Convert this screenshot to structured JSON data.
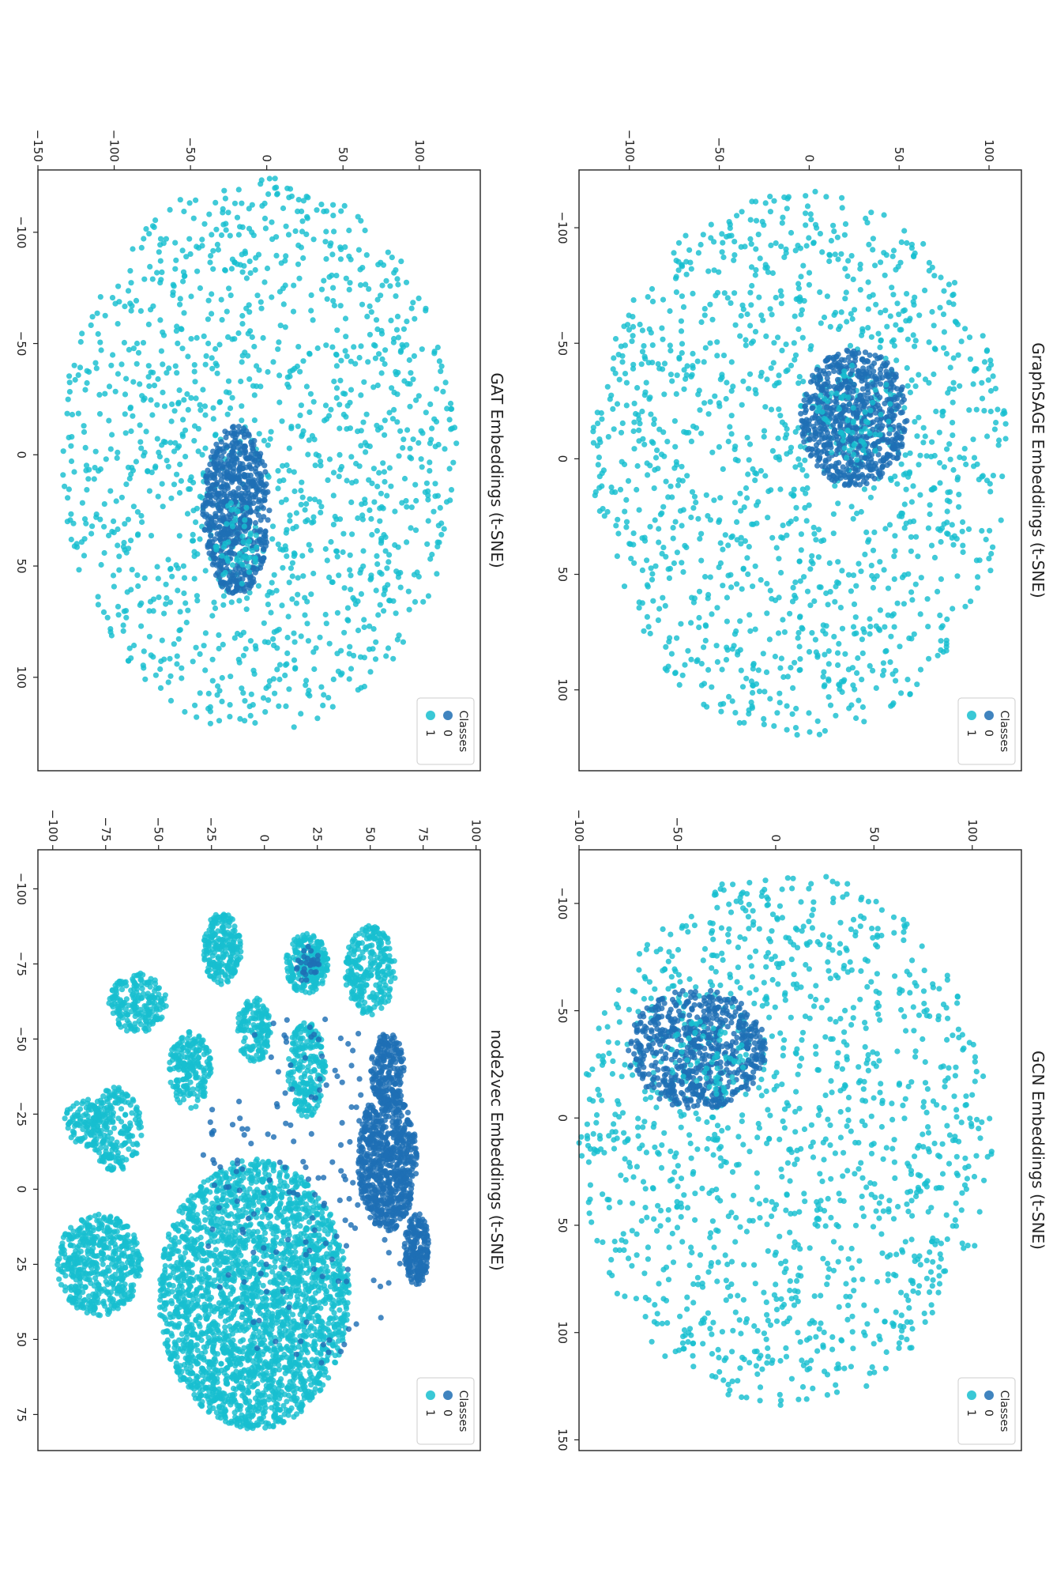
{
  "figure": {
    "rotation_deg": 90
  },
  "colors": {
    "class0": "#1f6fb4",
    "class1": "#17becf",
    "axis": "#222222"
  },
  "chart_data": [
    {
      "type": "scatter",
      "title": "GraphSAGE Embeddings (t-SNE)",
      "xlim": [
        -125,
        135
      ],
      "ylim": [
        -128,
        118
      ],
      "xticks": [
        -100,
        -50,
        0,
        50,
        100
      ],
      "xtick_labels": [
        "−100",
        "−50",
        "0",
        "50",
        "100"
      ],
      "yticks": [
        -100,
        -50,
        0,
        50,
        100
      ],
      "ytick_labels": [
        "−100",
        "−50",
        "0",
        "50",
        "100"
      ],
      "legend": {
        "title": "Classes",
        "entries": [
          "0",
          "1"
        ],
        "placement": "upper right"
      },
      "series": [
        {
          "label": "1",
          "color": "#17becf",
          "shape": "ellipse",
          "center": [
            2,
            -5
          ],
          "spread": [
            118,
            116
          ],
          "n": 1300,
          "seed": 11
        },
        {
          "label": "0",
          "color": "#1f6fb4",
          "shape": "ellipse",
          "center": [
            -18,
            25
          ],
          "spread": [
            30,
            30
          ],
          "n": 700,
          "seed": 12
        },
        {
          "label": "1",
          "color": "#17becf",
          "shape": "ellipse",
          "center": [
            -20,
            25
          ],
          "spread": [
            22,
            22
          ],
          "n": 60,
          "seed": 13
        }
      ]
    },
    {
      "type": "scatter",
      "title": "GCN Embeddings (t-SNE)",
      "xlim": [
        -125,
        155
      ],
      "ylim": [
        -100,
        125
      ],
      "xticks": [
        -100,
        -50,
        0,
        50,
        100,
        150
      ],
      "xtick_labels": [
        "−100",
        "−50",
        "0",
        "50",
        "100",
        "150"
      ],
      "yticks": [
        -100,
        -50,
        0,
        50,
        100
      ],
      "ytick_labels": [
        "−100",
        "−50",
        "0",
        "50",
        "100"
      ],
      "legend": {
        "title": "Classes",
        "entries": [
          "0",
          "1"
        ],
        "placement": "upper right"
      },
      "series": [
        {
          "label": "1",
          "color": "#17becf",
          "shape": "ellipse",
          "center": [
            10,
            5
          ],
          "spread": [
            125,
            105
          ],
          "n": 1300,
          "seed": 21
        },
        {
          "label": "0",
          "color": "#1f6fb4",
          "shape": "ellipse",
          "center": [
            -32,
            -40
          ],
          "spread": [
            28,
            35
          ],
          "n": 650,
          "seed": 22
        },
        {
          "label": "1",
          "color": "#17becf",
          "shape": "ellipse",
          "center": [
            -28,
            -35
          ],
          "spread": [
            18,
            20
          ],
          "n": 50,
          "seed": 23
        }
      ]
    },
    {
      "type": "scatter",
      "title": "GAT Embeddings (t-SNE)",
      "xlim": [
        -128,
        142
      ],
      "ylim": [
        -150,
        140
      ],
      "xticks": [
        -100,
        -50,
        0,
        50,
        100
      ],
      "xtick_labels": [
        "−100",
        "−50",
        "0",
        "50",
        "100"
      ],
      "yticks": [
        -150,
        -100,
        -50,
        0,
        50,
        100
      ],
      "ytick_labels": [
        "−150",
        "−100",
        "−50",
        "0",
        "50",
        "100"
      ],
      "legend": {
        "title": "Classes",
        "entries": [
          "0",
          "1"
        ],
        "placement": "upper right"
      },
      "series": [
        {
          "label": "1",
          "color": "#17becf",
          "shape": "ellipse",
          "center": [
            0,
            -5
          ],
          "spread": [
            125,
            130
          ],
          "n": 1300,
          "seed": 31
        },
        {
          "label": "0",
          "color": "#1f6fb4",
          "shape": "ellipse",
          "center": [
            25,
            -20
          ],
          "spread": [
            38,
            22
          ],
          "n": 650,
          "seed": 32
        },
        {
          "label": "1",
          "color": "#17becf",
          "shape": "ellipse",
          "center": [
            40,
            -20
          ],
          "spread": [
            20,
            14
          ],
          "n": 50,
          "seed": 33
        }
      ]
    },
    {
      "type": "scatter",
      "title": "node2vec Embeddings (t-SNE)",
      "xlim": [
        -113,
        87
      ],
      "ylim": [
        -107,
        102
      ],
      "xticks": [
        -100,
        -75,
        -50,
        -25,
        0,
        25,
        50,
        75
      ],
      "xtick_labels": [
        "−100",
        "−75",
        "−50",
        "−25",
        "0",
        "25",
        "50",
        "75"
      ],
      "yticks": [
        -100,
        -75,
        -50,
        -25,
        0,
        25,
        50,
        75,
        100
      ],
      "ytick_labels": [
        "−100",
        "−75",
        "−50",
        "−25",
        "0",
        "25",
        "50",
        "75",
        "100"
      ],
      "legend": {
        "title": "Classes",
        "entries": [
          "0",
          "1"
        ],
        "placement": "upper right"
      },
      "series": [
        {
          "label": "1",
          "color": "#17becf",
          "shape": "ellipse",
          "center": [
            35,
            -5
          ],
          "spread": [
            45,
            45
          ],
          "n": 2600,
          "seed": 41
        },
        {
          "label": "1",
          "color": "#17becf",
          "shape": "ellipse",
          "center": [
            25,
            -78
          ],
          "spread": [
            17,
            20
          ],
          "n": 500,
          "seed": 42
        },
        {
          "label": "1",
          "color": "#17becf",
          "shape": "ellipse",
          "center": [
            -62,
            -60
          ],
          "spread": [
            10,
            14
          ],
          "n": 200,
          "seed": 43
        },
        {
          "label": "1",
          "color": "#17becf",
          "shape": "ellipse",
          "center": [
            -80,
            -20
          ],
          "spread": [
            12,
            9
          ],
          "n": 220,
          "seed": 44
        },
        {
          "label": "1",
          "color": "#17becf",
          "shape": "ellipse",
          "center": [
            -75,
            20
          ],
          "spread": [
            10,
            10
          ],
          "n": 220,
          "seed": 45
        },
        {
          "label": "1",
          "color": "#17becf",
          "shape": "ellipse",
          "center": [
            -73,
            50
          ],
          "spread": [
            15,
            12
          ],
          "n": 260,
          "seed": 46
        },
        {
          "label": "1",
          "color": "#17becf",
          "shape": "ellipse",
          "center": [
            -40,
            -35
          ],
          "spread": [
            13,
            10
          ],
          "n": 200,
          "seed": 47
        },
        {
          "label": "1",
          "color": "#17becf",
          "shape": "ellipse",
          "center": [
            -53,
            -5
          ],
          "spread": [
            11,
            8
          ],
          "n": 150,
          "seed": 48
        },
        {
          "label": "1",
          "color": "#17becf",
          "shape": "ellipse",
          "center": [
            -40,
            20
          ],
          "spread": [
            16,
            9
          ],
          "n": 220,
          "seed": 49
        },
        {
          "label": "1",
          "color": "#17becf",
          "shape": "ellipse",
          "center": [
            -20,
            -70
          ],
          "spread": [
            14,
            12
          ],
          "n": 200,
          "seed": 50
        },
        {
          "label": "1",
          "color": "#17becf",
          "shape": "ellipse",
          "center": [
            -22,
            -83
          ],
          "spread": [
            8,
            12
          ],
          "n": 120,
          "seed": 51
        },
        {
          "label": "0",
          "color": "#1f6fb4",
          "shape": "ellipse",
          "center": [
            -10,
            58
          ],
          "spread": [
            24,
            14
          ],
          "n": 700,
          "seed": 52
        },
        {
          "label": "0",
          "color": "#1f6fb4",
          "shape": "ellipse",
          "center": [
            20,
            72
          ],
          "spread": [
            12,
            6
          ],
          "n": 200,
          "seed": 53
        },
        {
          "label": "0",
          "color": "#1f6fb4",
          "shape": "ellipse",
          "center": [
            -40,
            58
          ],
          "spread": [
            12,
            8
          ],
          "n": 180,
          "seed": 54
        },
        {
          "label": "0",
          "color": "#1f6fb4",
          "shape": "ellipse",
          "center": [
            0,
            20
          ],
          "spread": [
            60,
            50
          ],
          "n": 180,
          "seed": 55
        },
        {
          "label": "0",
          "color": "#1f6fb4",
          "shape": "ellipse",
          "center": [
            -75,
            20
          ],
          "spread": [
            6,
            6
          ],
          "n": 30,
          "seed": 56
        }
      ]
    }
  ]
}
